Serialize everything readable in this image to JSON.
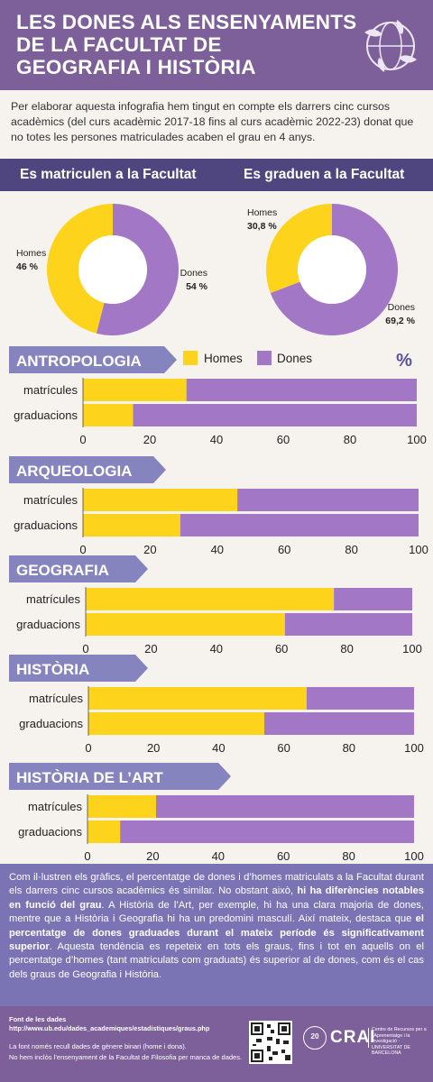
{
  "header": {
    "title_lines": [
      "LES DONES ALS ENSENYAMENTS",
      "DE LA FACULTAT DE",
      "GEOGRAFIA I HISTÒRIA"
    ],
    "logo_icon": "globe-hands-icon"
  },
  "intro": "Per elaborar aquesta infografia hem tingut en compte els darrers cinc cursos acadèmics (del curs acadèmic 2017-18 fins al curs acadèmic 2022-23) donat que no totes les persones matriculades acaben el grau en 4 anys.",
  "colors": {
    "homes": "#fdd31c",
    "dones": "#a277c6",
    "band": "#4f4680",
    "tab": "#8584bf",
    "header": "#7d5f9a"
  },
  "chart_data": [
    {
      "type": "pie",
      "title": "Es matriculen a la Facultat",
      "labels": [
        "Homes",
        "Dones"
      ],
      "value_labels": [
        "46 %",
        "54 %"
      ],
      "values": [
        46,
        54
      ]
    },
    {
      "type": "pie",
      "title": "Es graduen a la Facultat",
      "labels": [
        "Homes",
        "Dones"
      ],
      "value_labels": [
        "30,8 %",
        "69,2 %"
      ],
      "values": [
        30.8,
        69.2
      ]
    },
    {
      "type": "bar",
      "orientation": "horizontal-stacked",
      "title": "ANTROPOLOGIA",
      "categories": [
        "matrícules",
        "graduacions"
      ],
      "series": [
        {
          "name": "Homes",
          "values": [
            31,
            15
          ]
        },
        {
          "name": "Dones",
          "values": [
            69,
            85
          ]
        }
      ],
      "xlim": [
        0,
        100
      ],
      "xticks": [
        "0",
        "20",
        "40",
        "60",
        "80",
        "100"
      ],
      "legend": {
        "position": "top",
        "unit": "%"
      }
    },
    {
      "type": "bar",
      "orientation": "horizontal-stacked",
      "title": "ARQUEOLOGIA",
      "categories": [
        "matrícules",
        "graduacions"
      ],
      "series": [
        {
          "name": "Homes",
          "values": [
            46,
            29
          ]
        },
        {
          "name": "Dones",
          "values": [
            54,
            71
          ]
        }
      ],
      "xlim": [
        0,
        100
      ],
      "xticks": [
        "0",
        "20",
        "40",
        "60",
        "80",
        "100"
      ]
    },
    {
      "type": "bar",
      "orientation": "horizontal-stacked",
      "title": "GEOGRAFIA",
      "categories": [
        "matrícules",
        "graduacions"
      ],
      "series": [
        {
          "name": "Homes",
          "values": [
            76,
            61
          ]
        },
        {
          "name": "Dones",
          "values": [
            24,
            39
          ]
        }
      ],
      "xlim": [
        0,
        100
      ],
      "xticks": [
        "0",
        "20",
        "40",
        "60",
        "80",
        "100"
      ]
    },
    {
      "type": "bar",
      "orientation": "horizontal-stacked",
      "title": "HISTÒRIA",
      "categories": [
        "matrícules",
        "graduacions"
      ],
      "series": [
        {
          "name": "Homes",
          "values": [
            67,
            54
          ]
        },
        {
          "name": "Dones",
          "values": [
            33,
            46
          ]
        }
      ],
      "xlim": [
        0,
        100
      ],
      "xticks": [
        "0",
        "20",
        "40",
        "60",
        "80",
        "100"
      ]
    },
    {
      "type": "bar",
      "orientation": "horizontal-stacked",
      "title": "HISTÒRIA DE L’ART",
      "categories": [
        "matrícules",
        "graduacions"
      ],
      "series": [
        {
          "name": "Homes",
          "values": [
            21,
            10
          ]
        },
        {
          "name": "Dones",
          "values": [
            79,
            90
          ]
        }
      ],
      "xlim": [
        0,
        100
      ],
      "xticks": [
        "0",
        "20",
        "40",
        "60",
        "80",
        "100"
      ]
    }
  ],
  "summary": [
    {
      "t": "Com il·lustren els gràfics, el percentatge de dones i d’homes matriculats a la Facultat durant els darrers cinc cursos acadèmics és similar. No obstant això, ",
      "b": false
    },
    {
      "t": "hi ha diferències notables en funció del grau",
      "b": true
    },
    {
      "t": ". A Història de l’Art, per exemple, hi ha una clara majoria de dones, mentre que a Història i Geografia hi ha un predomini masculí. Així mateix, destaca que ",
      "b": false
    },
    {
      "t": "el percentatge de dones graduades durant el mateix període és significativament superior",
      "b": true
    },
    {
      "t": ". Aquesta tendència es repeteix en tots els graus, fins i tot en aquells on el percentatge d’homes (tant matriculats com graduats) és superior al de dones, com és el cas dels graus de Geografia i Història.",
      "b": false
    }
  ],
  "footer": {
    "source_title": "Font de les dades",
    "source_url": "http://www.ub.edu/dades_academiques/estadistiques/graus.php",
    "note1": "La font només recull dades de gènere binari (home i dona).",
    "note2": "No hem inclòs l’ensenyament de la Facultat de Filosofia per manca de dades.",
    "qr_icon": "qr-code-icon",
    "crai_badge": "20",
    "crai_word": "CRAI",
    "crai_text": "Centre de Recursos per a l’Aprenentatge i la Investigació · UNIVERSITAT DE BARCELONA"
  }
}
